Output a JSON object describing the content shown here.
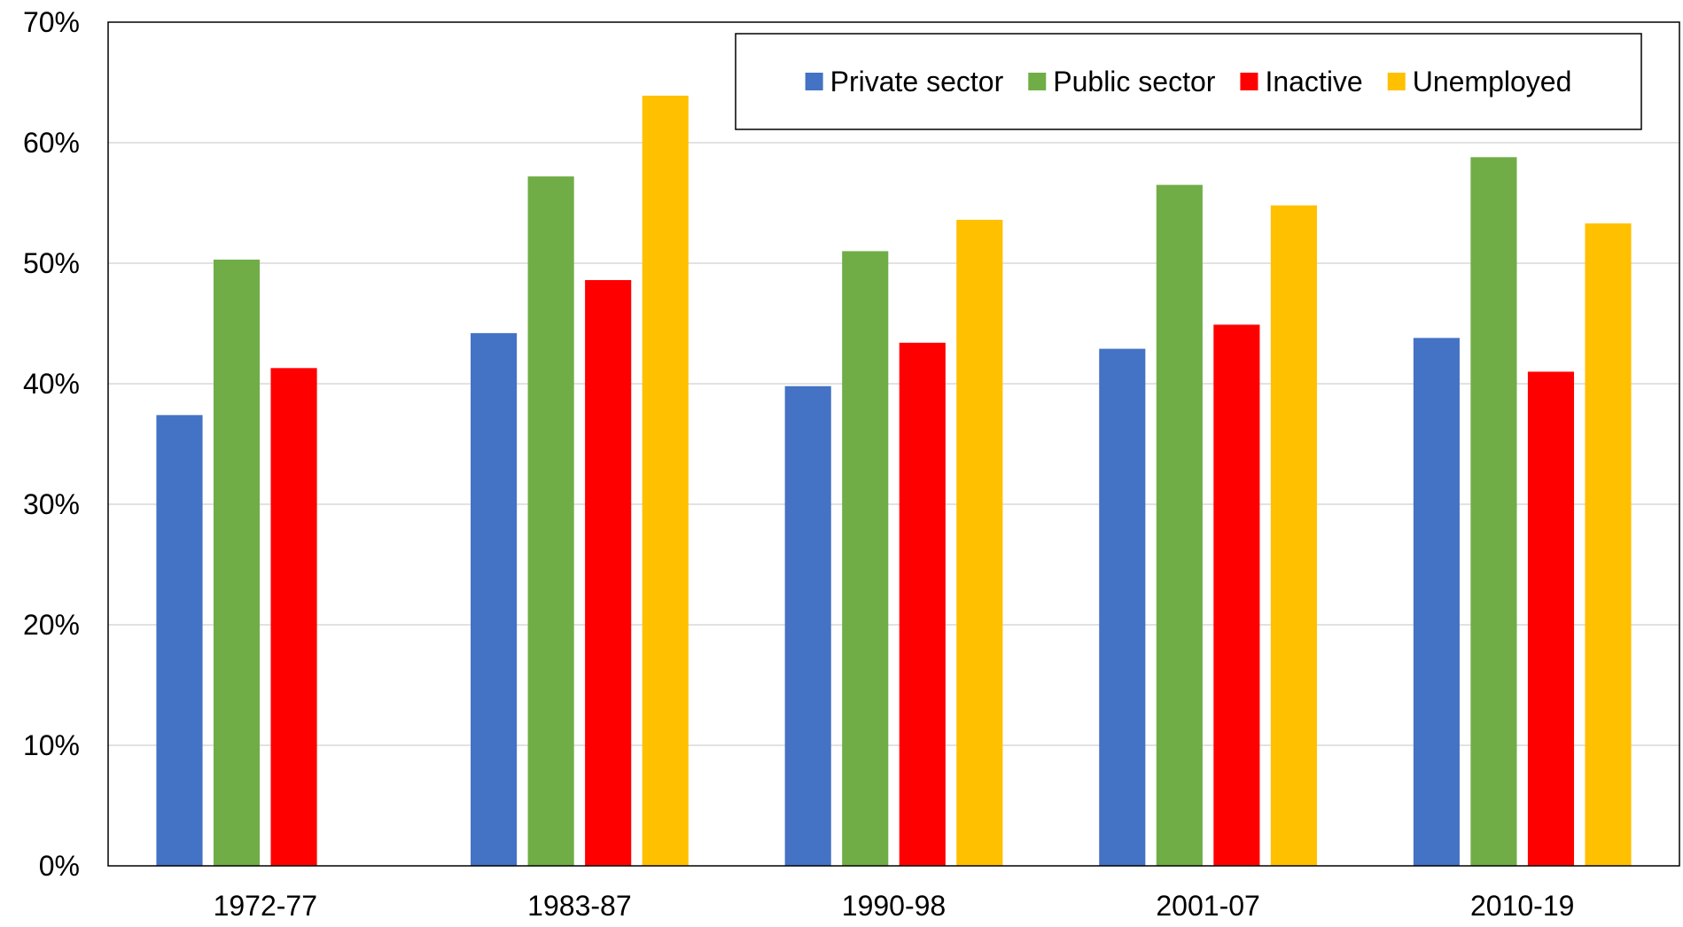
{
  "chart_data": {
    "type": "bar",
    "title": "",
    "xlabel": "",
    "ylabel": "",
    "categories": [
      "1972-77",
      "1983-87",
      "1990-98",
      "2001-07",
      "2010-19"
    ],
    "series": [
      {
        "name": "Private sector",
        "color": "#4472C4",
        "values": [
          37.4,
          44.2,
          39.8,
          42.9,
          43.8
        ]
      },
      {
        "name": "Public sector",
        "color": "#70AD47",
        "values": [
          50.3,
          57.2,
          51.0,
          56.5,
          58.8
        ]
      },
      {
        "name": "Inactive",
        "color": "#FF0000",
        "values": [
          41.3,
          48.6,
          43.4,
          44.9,
          41.0
        ]
      },
      {
        "name": "Unemployed",
        "color": "#FFC000",
        "values": [
          null,
          63.9,
          53.6,
          54.8,
          53.3
        ]
      }
    ],
    "ylim": [
      0,
      70
    ],
    "ytick_step": 10,
    "ytick_labels": [
      "0%",
      "10%",
      "20%",
      "30%",
      "40%",
      "50%",
      "60%",
      "70%"
    ],
    "grid": true,
    "legend_position": "top-right"
  }
}
